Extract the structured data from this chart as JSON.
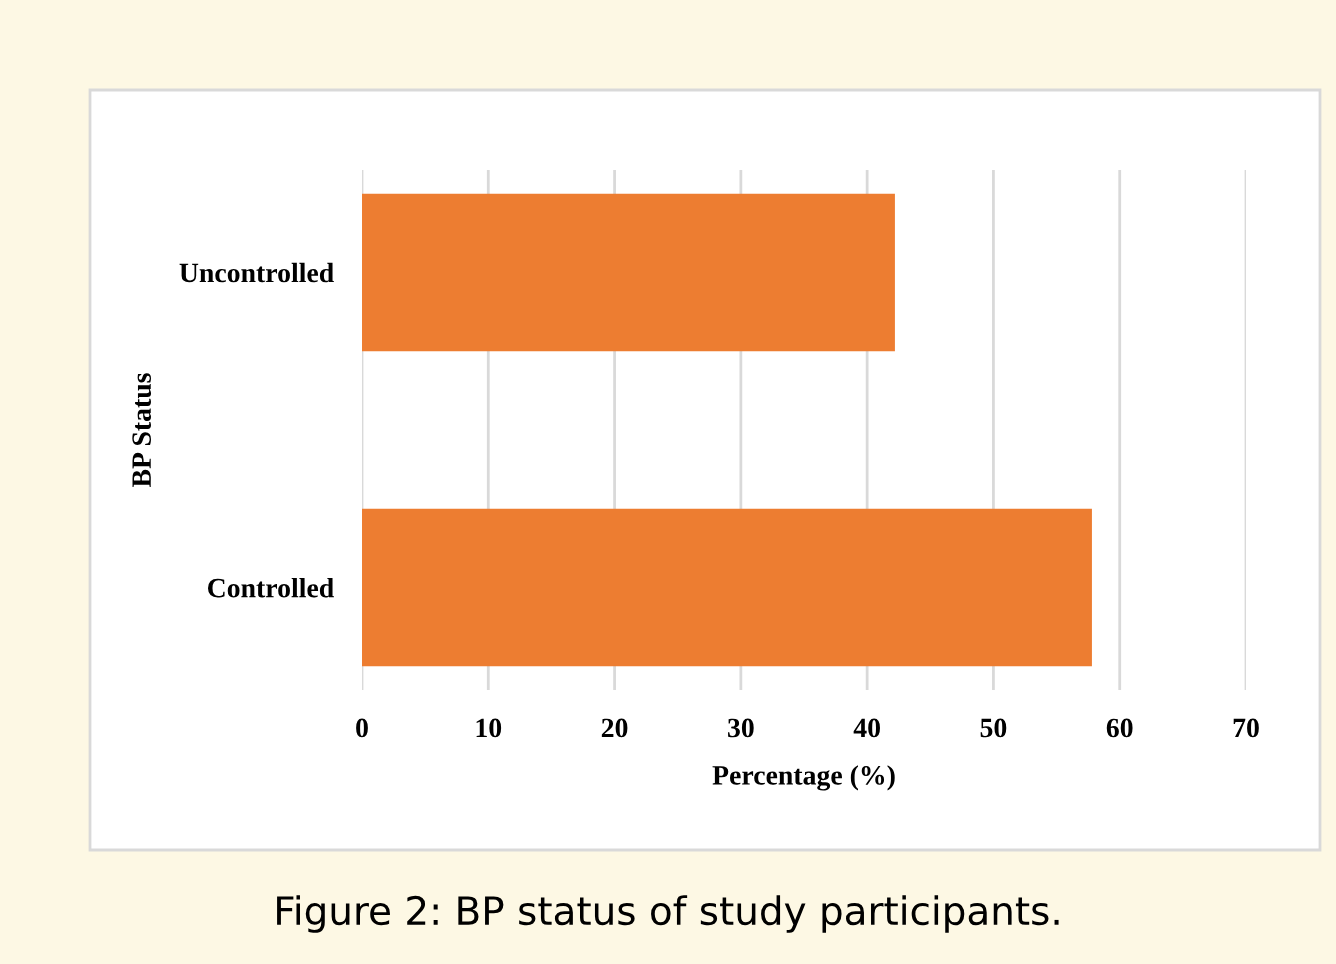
{
  "chart_data": {
    "type": "bar",
    "orientation": "horizontal",
    "xlabel": "Percentage (%)",
    "ylabel": "BP Status",
    "categories": [
      "Uncontrolled",
      "Controlled"
    ],
    "values": [
      42.2,
      57.8
    ],
    "color": "#ed7d31",
    "xlim": [
      0,
      70
    ],
    "xticks": [
      0,
      10,
      20,
      30,
      40,
      50,
      60,
      70
    ],
    "grid": "x",
    "annotations": [
      "Figure 2: BP status of study participants."
    ]
  }
}
